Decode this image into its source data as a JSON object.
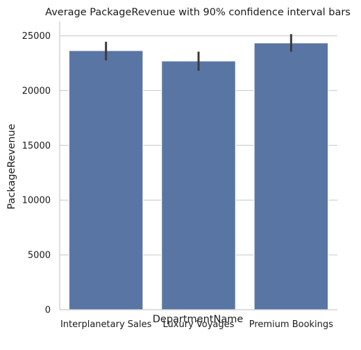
{
  "chart_data": {
    "type": "bar",
    "title": "Average PackageRevenue with 90% confidence interval bars",
    "xlabel": "DepartmentName",
    "ylabel": "PackageRevenue",
    "categories": [
      "Interplanetary Sales",
      "Luxury Voyages",
      "Premium Bookings"
    ],
    "values": [
      23650,
      22700,
      24350
    ],
    "ci_low": [
      22750,
      21800,
      23550
    ],
    "ci_high": [
      24450,
      23550,
      25150
    ],
    "ylim": [
      0,
      26300
    ],
    "yticks": [
      0,
      5000,
      10000,
      15000,
      20000,
      25000
    ],
    "ytick_labels": [
      "0",
      "5000",
      "10000",
      "15000",
      "20000",
      "25000"
    ],
    "bar_color": "#5975a4",
    "errorbar_color": "#3b3b3b",
    "grid": "horizontal",
    "legend": "none"
  }
}
